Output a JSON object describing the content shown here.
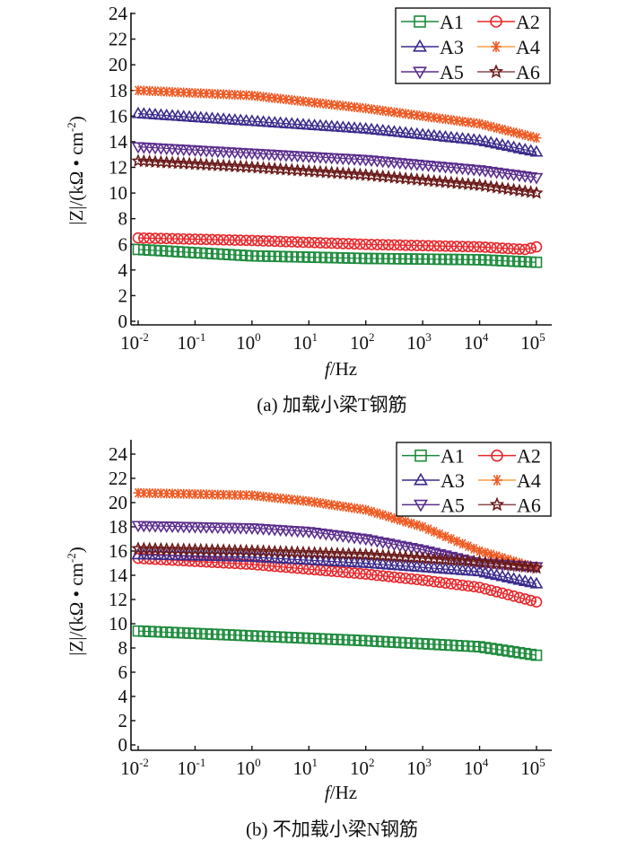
{
  "chart_data": [
    {
      "id": "a",
      "type": "scatter",
      "caption": "(a) 加载小梁T钢筋",
      "xlabel_italic": "f",
      "xlabel_rest": "/Hz",
      "ylabel": "|Z|/(kΩ • cm",
      "ylabel_sup": "-2",
      "ylabel_close": ")",
      "xscale": "log",
      "xlim": [
        0.01,
        100000
      ],
      "ylim": [
        0,
        24
      ],
      "yticks": [
        0,
        2,
        4,
        6,
        8,
        10,
        12,
        14,
        16,
        18,
        20,
        22,
        24
      ],
      "xticks": [
        {
          "base": "10",
          "exp": "-2"
        },
        {
          "base": "10",
          "exp": "-1"
        },
        {
          "base": "10",
          "exp": "0"
        },
        {
          "base": "10",
          "exp": "1"
        },
        {
          "base": "10",
          "exp": "2"
        },
        {
          "base": "10",
          "exp": "3"
        },
        {
          "base": "10",
          "exp": "4"
        },
        {
          "base": "10",
          "exp": "5"
        }
      ],
      "legend_position": "top-right",
      "series": [
        {
          "name": "A1",
          "marker": "square",
          "color": "#1a8a3a",
          "line_color": "#1a8a3a",
          "log10_f": [
            -2,
            0,
            2,
            4,
            5
          ],
          "values": [
            5.6,
            5.1,
            4.9,
            4.8,
            4.6
          ]
        },
        {
          "name": "A2",
          "marker": "circle",
          "color": "#e8262a",
          "line_color": "#e8262a",
          "log10_f": [
            -2,
            0,
            2,
            4,
            4.8,
            5
          ],
          "values": [
            6.5,
            6.3,
            6.0,
            5.8,
            5.6,
            5.8
          ]
        },
        {
          "name": "A3",
          "marker": "triangle-up",
          "color": "#3b2a8c",
          "line_color": "#3b2a8c",
          "log10_f": [
            -2,
            0,
            2,
            4,
            5
          ],
          "values": [
            16.2,
            15.6,
            15.0,
            14.1,
            13.2
          ]
        },
        {
          "name": "A4",
          "marker": "asterisk",
          "color": "#ee5a24",
          "line_color": "#f7a043",
          "log10_f": [
            -2,
            0,
            2,
            4,
            5
          ],
          "values": [
            18.0,
            17.6,
            16.6,
            15.4,
            14.3
          ]
        },
        {
          "name": "A5",
          "marker": "triangle-down",
          "color": "#5a2d8c",
          "line_color": "#5a2d8c",
          "log10_f": [
            -2,
            0,
            2,
            4,
            5
          ],
          "values": [
            13.6,
            13.1,
            12.6,
            11.8,
            11.2
          ]
        },
        {
          "name": "A6",
          "marker": "star",
          "color": "#6b1a1a",
          "line_color": "#8a4a4a",
          "log10_f": [
            -2,
            0,
            2,
            4,
            5
          ],
          "values": [
            12.5,
            12.0,
            11.4,
            10.6,
            10.0
          ]
        }
      ]
    },
    {
      "id": "b",
      "type": "scatter",
      "caption": "(b) 不加载小梁N钢筋",
      "xlabel_italic": "f",
      "xlabel_rest": "/Hz",
      "ylabel": "|Z|/(kΩ • cm",
      "ylabel_sup": "-2",
      "ylabel_close": ")",
      "xscale": "log",
      "xlim": [
        0.01,
        100000
      ],
      "ylim": [
        0,
        24
      ],
      "yticks": [
        0,
        2,
        4,
        6,
        8,
        10,
        12,
        14,
        16,
        18,
        20,
        22,
        24
      ],
      "xticks": [
        {
          "base": "10",
          "exp": "-2"
        },
        {
          "base": "10",
          "exp": "-1"
        },
        {
          "base": "10",
          "exp": "0"
        },
        {
          "base": "10",
          "exp": "1"
        },
        {
          "base": "10",
          "exp": "2"
        },
        {
          "base": "10",
          "exp": "3"
        },
        {
          "base": "10",
          "exp": "4"
        },
        {
          "base": "10",
          "exp": "5"
        }
      ],
      "legend_position": "top-right",
      "series": [
        {
          "name": "A1",
          "marker": "square",
          "color": "#1a8a3a",
          "line_color": "#1a8a3a",
          "log10_f": [
            -2,
            0,
            2,
            4,
            5
          ],
          "values": [
            9.4,
            9.0,
            8.6,
            8.1,
            7.4
          ]
        },
        {
          "name": "A2",
          "marker": "circle",
          "color": "#e8262a",
          "line_color": "#e8262a",
          "log10_f": [
            -2,
            0,
            2,
            3,
            4,
            5
          ],
          "values": [
            15.4,
            14.9,
            14.1,
            13.6,
            13.0,
            11.8
          ]
        },
        {
          "name": "A3",
          "marker": "triangle-up",
          "color": "#3b2a8c",
          "line_color": "#3b2a8c",
          "log10_f": [
            -2,
            0,
            2,
            4,
            5
          ],
          "values": [
            15.7,
            15.5,
            15.0,
            14.3,
            13.3
          ]
        },
        {
          "name": "A4",
          "marker": "asterisk",
          "color": "#ee5a24",
          "line_color": "#f7a043",
          "log10_f": [
            -2,
            0,
            1,
            2,
            3,
            4,
            5
          ],
          "values": [
            20.8,
            20.6,
            20.1,
            19.4,
            18.0,
            16.0,
            14.6
          ]
        },
        {
          "name": "A5",
          "marker": "triangle-down",
          "color": "#5a2d8c",
          "line_color": "#5a2d8c",
          "log10_f": [
            -2,
            0,
            1,
            2,
            3,
            4,
            5
          ],
          "values": [
            18.1,
            17.9,
            17.6,
            17.0,
            16.1,
            15.0,
            14.7
          ]
        },
        {
          "name": "A6",
          "marker": "star",
          "color": "#6b1a1a",
          "line_color": "#8a4a4a",
          "log10_f": [
            -2,
            0,
            2,
            4,
            5
          ],
          "values": [
            16.2,
            16.0,
            15.7,
            15.1,
            14.6
          ]
        }
      ]
    }
  ]
}
